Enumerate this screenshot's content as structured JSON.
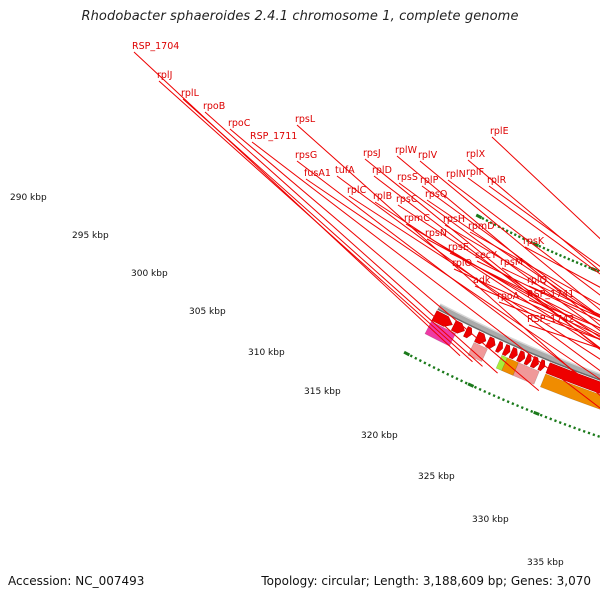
{
  "title": "Rhodobacter sphaeroides 2.4.1 chromosome 1, complete genome",
  "footer": {
    "accession": "Accession: NC_007493",
    "topology": "Topology: circular; Length: 3,188,609 bp; Genes: 3,070"
  },
  "colors": {
    "label_line": "#ee0000",
    "tick": "#1b7a1b",
    "cds_arrow": "#ee0000",
    "backbone": "#aaaaaa",
    "orange": "#f08c00",
    "salmon": "#f09999",
    "pink": "#ee3aa5",
    "lime": "#a8ee3a",
    "cyan": "#22bbee",
    "teal": "#1aaa9a",
    "khaki": "#c8b97a",
    "steel": "#5588bb"
  },
  "kbp_labels": [
    "290 kbp",
    "295 kbp",
    "300 kbp",
    "305 kbp",
    "310 kbp",
    "315 kbp",
    "320 kbp",
    "325 kbp",
    "330 kbp",
    "335 kbp"
  ],
  "gene_labels": [
    "RSP_1704",
    "rplJ",
    "rplL",
    "rpoB",
    "rpoC",
    "RSP_1711",
    "rpsL",
    "rpsG",
    "fusA1",
    "tufA",
    "rpsJ",
    "rplD",
    "rplC",
    "rplW",
    "rplB",
    "rpsS",
    "rplV",
    "rpsC",
    "rplP",
    "rpmC",
    "rpsQ",
    "rplN",
    "rplX",
    "rplE",
    "rpsN",
    "rpsH",
    "rplF",
    "rplR",
    "rpsE",
    "rpmD",
    "rplO",
    "secY",
    "adk",
    "rpsM",
    "rpsK",
    "rplQ",
    "rpoA",
    "RSP_1741",
    "RSP_1742"
  ]
}
